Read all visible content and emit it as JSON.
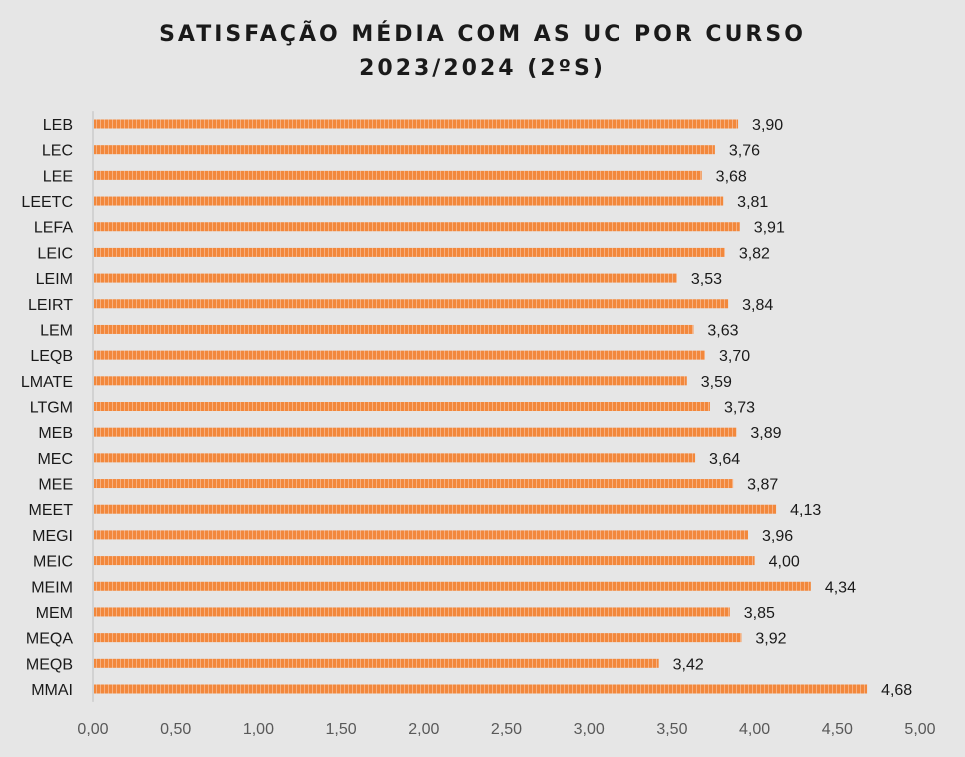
{
  "chart_data": {
    "type": "bar",
    "orientation": "horizontal",
    "title_line1": "SATISFAÇÃO MÉDIA COM AS UC POR CURSO",
    "title_line2": "2023/2024 (2ºS)",
    "categories": [
      "LEB",
      "LEC",
      "LEE",
      "LEETC",
      "LEFA",
      "LEIC",
      "LEIM",
      "LEIRT",
      "LEM",
      "LEQB",
      "LMATE",
      "LTGM",
      "MEB",
      "MEC",
      "MEE",
      "MEET",
      "MEGI",
      "MEIC",
      "MEIM",
      "MEM",
      "MEQA",
      "MEQB",
      "MMAI"
    ],
    "values": [
      3.9,
      3.76,
      3.68,
      3.81,
      3.91,
      3.82,
      3.53,
      3.84,
      3.63,
      3.7,
      3.59,
      3.73,
      3.89,
      3.64,
      3.87,
      4.13,
      3.96,
      4.0,
      4.34,
      3.85,
      3.92,
      3.42,
      4.68
    ],
    "value_labels": [
      "3,90",
      "3,76",
      "3,68",
      "3,81",
      "3,91",
      "3,82",
      "3,53",
      "3,84",
      "3,63",
      "3,70",
      "3,59",
      "3,73",
      "3,89",
      "3,64",
      "3,87",
      "4,13",
      "3,96",
      "4,00",
      "4,34",
      "3,85",
      "3,92",
      "3,42",
      "4,68"
    ],
    "xlim": [
      0,
      5
    ],
    "x_ticks": [
      "0,00",
      "0,50",
      "1,00",
      "1,50",
      "2,00",
      "2,50",
      "3,00",
      "3,50",
      "4,00",
      "4,50",
      "5,00"
    ],
    "grid": false,
    "legend": "none",
    "bar_color": "#f2883c",
    "bar_stripe_color": "#f7b080"
  }
}
